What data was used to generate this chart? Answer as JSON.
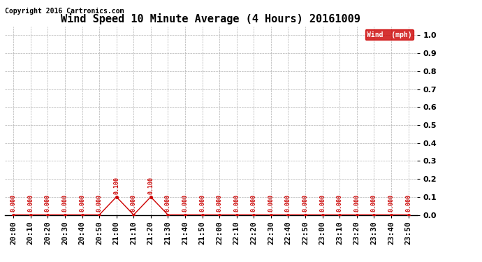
{
  "title": "Wind Speed 10 Minute Average (4 Hours) 20161009",
  "copyright": "Copyright 2016 Cartronics.com",
  "legend_label": "Wind  (mph)",
  "legend_bg": "#cc0000",
  "legend_fg": "#ffffff",
  "x_labels": [
    "20:00",
    "20:10",
    "20:20",
    "20:30",
    "20:40",
    "20:50",
    "21:00",
    "21:10",
    "21:20",
    "21:30",
    "21:40",
    "21:50",
    "22:00",
    "22:10",
    "22:20",
    "22:30",
    "22:40",
    "22:50",
    "23:00",
    "23:10",
    "23:20",
    "23:30",
    "23:40",
    "23:50"
  ],
  "y_values": [
    0.0,
    0.0,
    0.0,
    0.0,
    0.0,
    0.0,
    0.1,
    0.0,
    0.1,
    0.0,
    0.0,
    0.0,
    0.0,
    0.0,
    0.0,
    0.0,
    0.0,
    0.0,
    0.0,
    0.0,
    0.0,
    0.0,
    0.0,
    0.0
  ],
  "line_color": "#cc0000",
  "marker_color": "#cc0000",
  "annotation_color": "#cc0000",
  "bg_color": "#ffffff",
  "grid_color": "#b0b0b0",
  "ylim": [
    0.0,
    1.05
  ],
  "ytick_values": [
    0.0,
    0.1,
    0.2,
    0.2,
    0.3,
    0.4,
    0.5,
    0.6,
    0.7,
    0.8,
    0.8,
    0.9,
    1.0
  ],
  "ytick_labels": [
    "0.0",
    "0.1",
    "0.2",
    "0.2",
    "0.3",
    "0.4",
    "0.5",
    "0.6",
    "0.7",
    "0.8",
    "0.8",
    "0.9",
    "1.0"
  ],
  "title_fontsize": 11,
  "tick_fontsize": 8,
  "annotation_fontsize": 6,
  "copyright_fontsize": 7
}
